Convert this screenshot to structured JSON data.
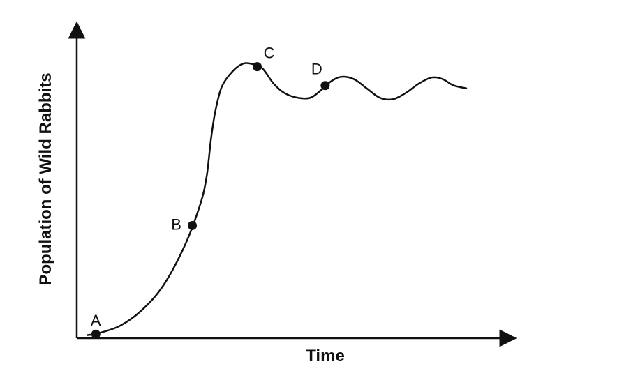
{
  "chart_data": {
    "type": "line",
    "title": "",
    "xlabel": "Time",
    "ylabel": "Population of Wild Rabbits",
    "x_ticks": false,
    "y_ticks": false,
    "grid": false,
    "legend": "none",
    "colors": {
      "line": "#111111",
      "axes": "#111111",
      "points": "#111111",
      "background": "#ffffff"
    },
    "xlim": [
      0,
      100
    ],
    "ylim": [
      0,
      100
    ],
    "series": [
      {
        "values": [
          {
            "x": 2.5,
            "y": 1
          },
          {
            "x": 5,
            "y": 1.6
          },
          {
            "x": 10,
            "y": 4
          },
          {
            "x": 15,
            "y": 9
          },
          {
            "x": 20,
            "y": 17
          },
          {
            "x": 25,
            "y": 30
          },
          {
            "x": 28.5,
            "y": 43
          },
          {
            "x": 30,
            "y": 52
          },
          {
            "x": 31,
            "y": 64
          },
          {
            "x": 32,
            "y": 73
          },
          {
            "x": 33.5,
            "y": 81
          },
          {
            "x": 36,
            "y": 86
          },
          {
            "x": 38.5,
            "y": 88.5
          },
          {
            "x": 41,
            "y": 88.2
          },
          {
            "x": 43,
            "y": 86.8
          },
          {
            "x": 45.5,
            "y": 82
          },
          {
            "x": 48,
            "y": 79
          },
          {
            "x": 51,
            "y": 77.5
          },
          {
            "x": 54,
            "y": 77.5
          },
          {
            "x": 56.5,
            "y": 80
          },
          {
            "x": 58.5,
            "y": 82.5
          },
          {
            "x": 61,
            "y": 84.2
          },
          {
            "x": 64,
            "y": 83.5
          },
          {
            "x": 67,
            "y": 80.5
          },
          {
            "x": 70,
            "y": 77.5
          },
          {
            "x": 73,
            "y": 77
          },
          {
            "x": 76,
            "y": 79
          },
          {
            "x": 79,
            "y": 82
          },
          {
            "x": 82,
            "y": 84
          },
          {
            "x": 84.5,
            "y": 83.5
          },
          {
            "x": 87,
            "y": 81.5
          },
          {
            "x": 90,
            "y": 80.5
          }
        ]
      }
    ],
    "points": [
      {
        "label": "A",
        "x": 4.4,
        "y": 1.3,
        "label_dx": 0,
        "label_dy": -18
      },
      {
        "label": "B",
        "x": 26.7,
        "y": 36.3,
        "label_dx": -23,
        "label_dy": 0
      },
      {
        "label": "C",
        "x": 41.7,
        "y": 87.5,
        "label_dx": 17,
        "label_dy": -18
      },
      {
        "label": "D",
        "x": 57.4,
        "y": 81.4,
        "label_dx": -12,
        "label_dy": -22
      }
    ]
  }
}
